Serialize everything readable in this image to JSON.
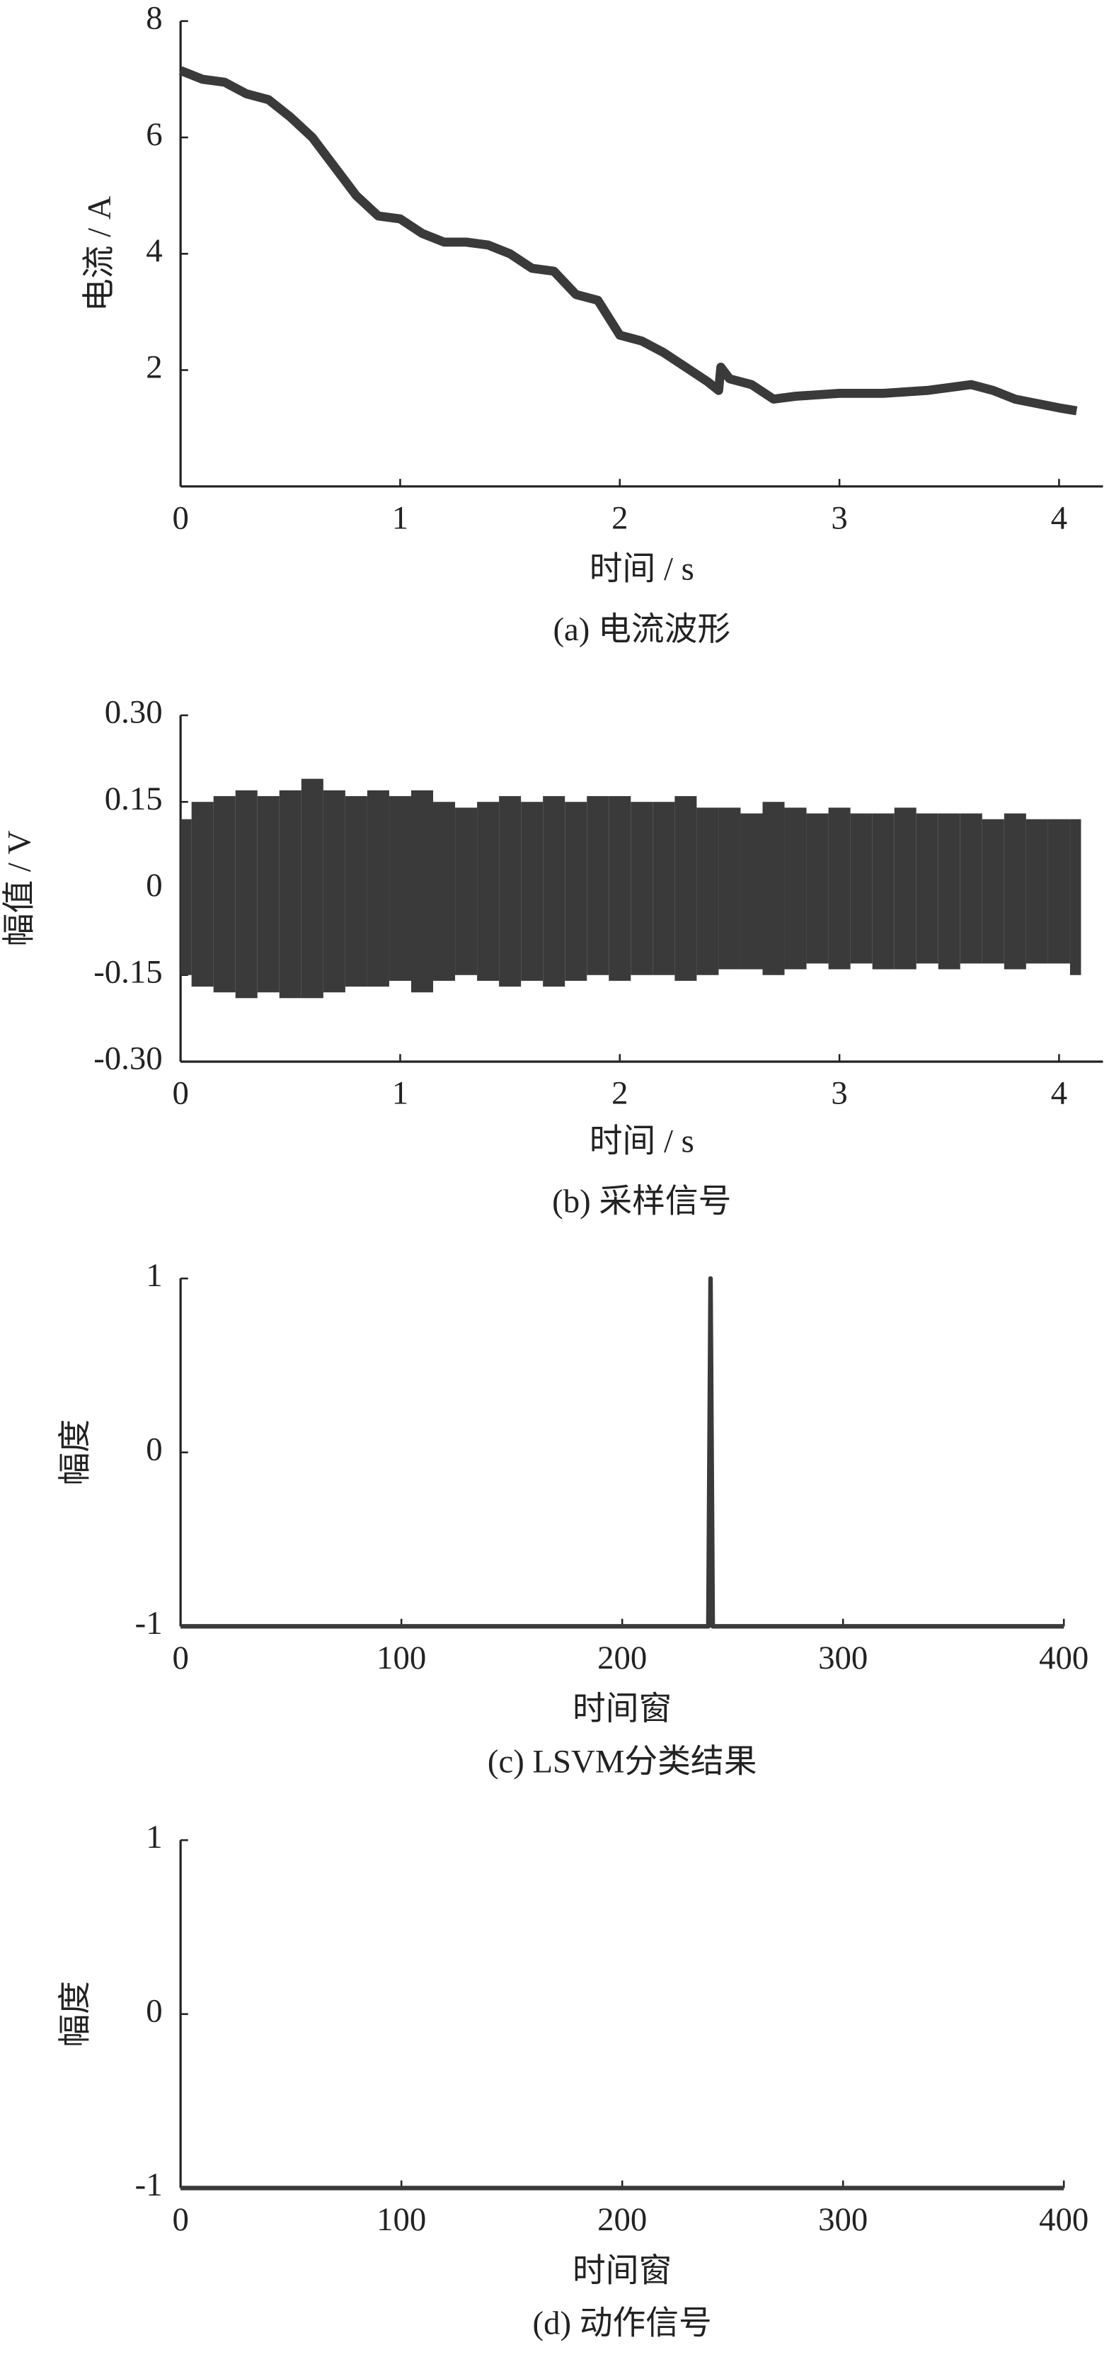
{
  "chart_data": [
    {
      "type": "line",
      "title": "(a) 电流波形",
      "xlabel": "时间 / s",
      "ylabel": "电流 / A",
      "color": "#3a3a3a",
      "x": [
        0,
        0.1,
        0.2,
        0.3,
        0.4,
        0.5,
        0.6,
        0.7,
        0.8,
        0.9,
        1.0,
        1.1,
        1.2,
        1.3,
        1.4,
        1.5,
        1.6,
        1.7,
        1.8,
        1.9,
        2.0,
        2.1,
        2.2,
        2.3,
        2.4,
        2.45,
        2.46,
        2.5,
        2.6,
        2.7,
        2.8,
        3.0,
        3.2,
        3.4,
        3.6,
        3.7,
        3.8,
        4.0,
        4.08
      ],
      "values": [
        7.15,
        7.0,
        6.95,
        6.75,
        6.65,
        6.35,
        6.0,
        5.5,
        5.0,
        4.65,
        4.6,
        4.35,
        4.2,
        4.2,
        4.15,
        4.0,
        3.75,
        3.7,
        3.3,
        3.2,
        2.6,
        2.5,
        2.3,
        2.05,
        1.8,
        1.65,
        2.05,
        1.85,
        1.75,
        1.5,
        1.55,
        1.6,
        1.6,
        1.65,
        1.75,
        1.65,
        1.5,
        1.35,
        1.3
      ],
      "xlim": [
        0,
        4.2
      ],
      "ylim": [
        0,
        8
      ],
      "xticks": [
        0,
        1,
        2,
        3,
        4
      ],
      "yticks": [
        2,
        4,
        6,
        8
      ]
    },
    {
      "type": "band",
      "title": "(b) 采样信号",
      "xlabel": "时间 / s",
      "ylabel": "幅值 / V",
      "color": "#3a3a3a",
      "x": [
        0,
        0.1,
        0.2,
        0.3,
        0.4,
        0.5,
        0.6,
        0.7,
        0.8,
        0.9,
        1.0,
        1.1,
        1.2,
        1.3,
        1.4,
        1.5,
        1.6,
        1.7,
        1.8,
        1.9,
        2.0,
        2.1,
        2.2,
        2.3,
        2.4,
        2.5,
        2.6,
        2.7,
        2.8,
        2.9,
        3.0,
        3.1,
        3.2,
        3.3,
        3.4,
        3.5,
        3.6,
        3.7,
        3.8,
        3.9,
        4.0,
        4.1
      ],
      "series": [
        {
          "values": [
            0.12,
            0.15,
            0.16,
            0.17,
            0.16,
            0.17,
            0.19,
            0.17,
            0.16,
            0.17,
            0.16,
            0.17,
            0.15,
            0.14,
            0.15,
            0.16,
            0.15,
            0.16,
            0.15,
            0.16,
            0.16,
            0.15,
            0.15,
            0.16,
            0.14,
            0.14,
            0.13,
            0.15,
            0.14,
            0.13,
            0.14,
            0.13,
            0.13,
            0.14,
            0.13,
            0.13,
            0.13,
            0.12,
            0.13,
            0.12,
            0.12,
            0.12
          ]
        },
        {
          "values": [
            -0.15,
            -0.17,
            -0.18,
            -0.19,
            -0.18,
            -0.19,
            -0.19,
            -0.18,
            -0.17,
            -0.17,
            -0.16,
            -0.18,
            -0.16,
            -0.15,
            -0.16,
            -0.17,
            -0.16,
            -0.17,
            -0.16,
            -0.15,
            -0.16,
            -0.15,
            -0.15,
            -0.16,
            -0.15,
            -0.14,
            -0.14,
            -0.15,
            -0.14,
            -0.13,
            -0.14,
            -0.13,
            -0.14,
            -0.14,
            -0.13,
            -0.14,
            -0.13,
            -0.13,
            -0.14,
            -0.13,
            -0.13,
            -0.15
          ]
        }
      ],
      "xlim": [
        0,
        4.2
      ],
      "ylim": [
        -0.3,
        0.3
      ],
      "xticks": [
        0,
        1,
        2,
        3,
        4
      ],
      "yticks": [
        {
          "value": 0.3,
          "label": "0.30"
        },
        0.15,
        0,
        -0.15,
        {
          "value": -0.3,
          "label": "-0.30"
        }
      ]
    },
    {
      "type": "line",
      "title": "(c) LSVM分类结果",
      "xlabel": "时间窗",
      "ylabel": "幅度",
      "color": "#3a3a3a",
      "x": [
        0,
        239,
        240,
        241,
        400
      ],
      "values": [
        -1,
        -1,
        1,
        -1,
        -1
      ],
      "xlim": [
        0,
        400
      ],
      "ylim": [
        -1,
        1
      ],
      "xticks": [
        0,
        100,
        200,
        300,
        400
      ],
      "yticks": [
        -1,
        0,
        1
      ]
    },
    {
      "type": "line",
      "title": "(d) 动作信号",
      "xlabel": "时间窗",
      "ylabel": "幅度",
      "color": "#3a3a3a",
      "x": [
        0,
        400
      ],
      "values": [
        -1,
        -1
      ],
      "xlim": [
        0,
        400
      ],
      "ylim": [
        -1,
        1
      ],
      "xticks": [
        0,
        100,
        200,
        300,
        400
      ],
      "yticks": [
        -1,
        0,
        1
      ]
    }
  ]
}
